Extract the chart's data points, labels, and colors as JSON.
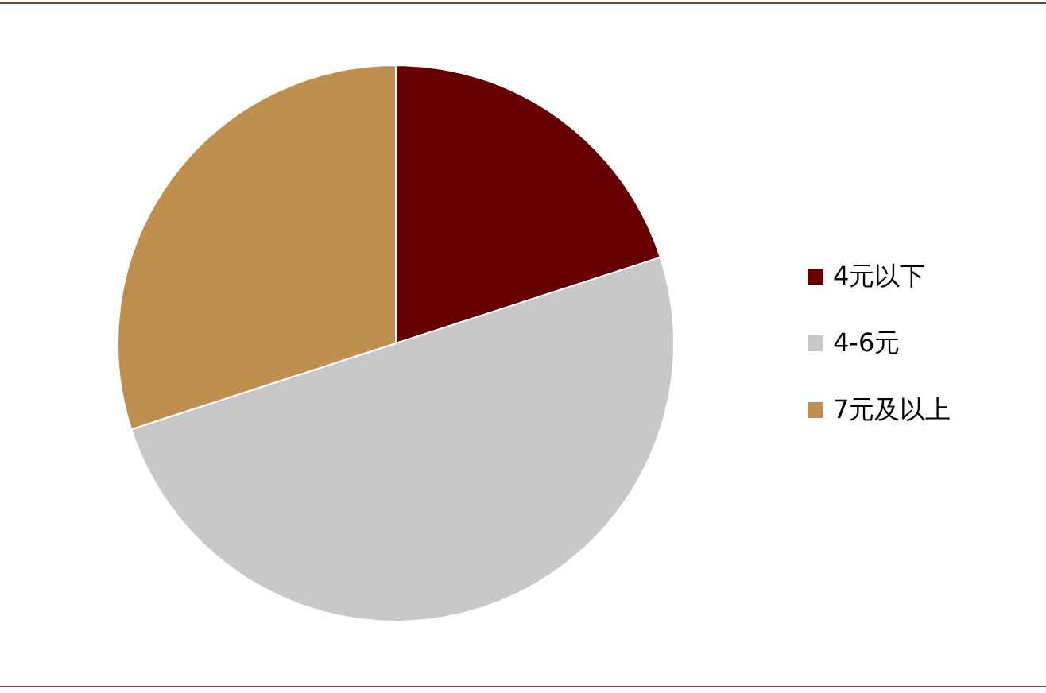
{
  "chart_data": {
    "type": "pie",
    "categories": [
      "4元以下",
      "4-6元",
      "7元及以上"
    ],
    "values": [
      20,
      50,
      30
    ],
    "colors": [
      "#660000",
      "#c8c8c8",
      "#bf8f4f"
    ],
    "legend": "right"
  }
}
